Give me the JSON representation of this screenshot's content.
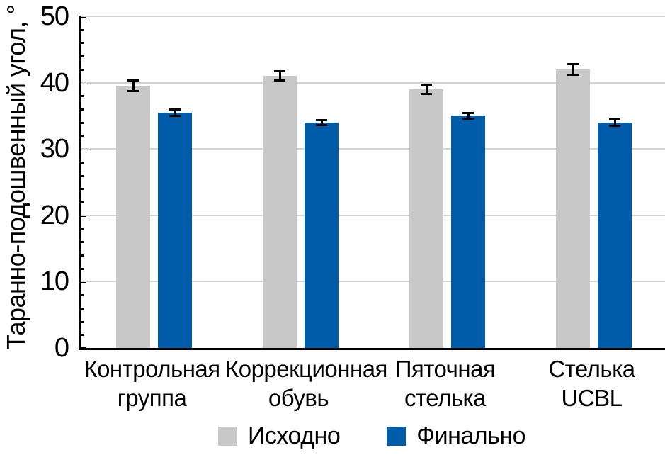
{
  "chart_data": {
    "type": "bar",
    "title": "",
    "ylabel": "Таранно-подошвенный угол, °",
    "xlabel": "",
    "ylim": [
      0,
      50
    ],
    "yticks": [
      0,
      10,
      20,
      30,
      40,
      50
    ],
    "ytick_minor_step": 2,
    "grid": true,
    "legend_position": "bottom",
    "categories": [
      "Контрольная группа",
      "Коррекционная обувь",
      "Пяточная стелька",
      "Стелька UCBL"
    ],
    "category_lines": [
      [
        "Контрольная",
        "группа"
      ],
      [
        "Коррекционная",
        "обувь"
      ],
      [
        "Пяточная",
        "стелька"
      ],
      [
        "Стелька",
        "UCBL"
      ]
    ],
    "series": [
      {
        "name": "Исходно",
        "color": "#c8c8c8",
        "values": [
          39.5,
          41,
          39,
          42
        ],
        "errors": [
          0.8,
          0.7,
          0.7,
          0.8
        ]
      },
      {
        "name": "Финально",
        "color": "#005ba9",
        "values": [
          35.5,
          34,
          35,
          34
        ],
        "errors": [
          0.5,
          0.4,
          0.4,
          0.5
        ]
      }
    ],
    "colors": {
      "gridline": "#d3d3d3",
      "axis": "#000000",
      "error_bar": "#000000",
      "text": "#000000",
      "background": "#ffffff"
    }
  }
}
